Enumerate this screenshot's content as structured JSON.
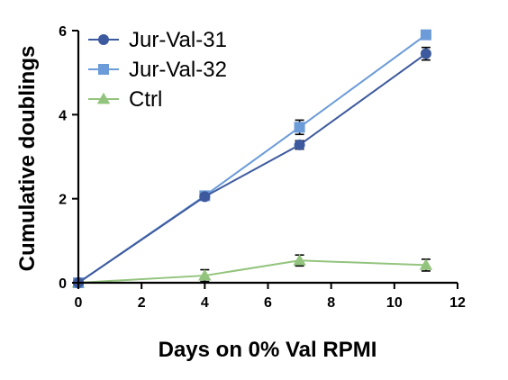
{
  "chart_data": {
    "type": "line",
    "xlabel": "Days on 0% Val RPMI",
    "ylabel": "Cumulative doublings",
    "xlim": [
      0,
      12
    ],
    "ylim": [
      0,
      6
    ],
    "xticks": [
      0,
      2,
      4,
      6,
      8,
      10,
      12
    ],
    "yticks": [
      0,
      2,
      4,
      6
    ],
    "grid": false,
    "legend_position": "top-left",
    "series": [
      {
        "name": "Jur-Val-31",
        "marker": "circle",
        "color": "#3e5a9e",
        "x": [
          0,
          4,
          7,
          11
        ],
        "y": [
          0,
          2.05,
          3.28,
          5.45
        ],
        "err": [
          0,
          0.06,
          0.1,
          0.15
        ]
      },
      {
        "name": "Jur-Val-32",
        "marker": "square",
        "color": "#6b9bd8",
        "x": [
          0,
          4,
          7,
          11
        ],
        "y": [
          0,
          2.07,
          3.7,
          5.9
        ],
        "err": [
          0,
          0.05,
          0.17,
          0.05
        ]
      },
      {
        "name": "Ctrl",
        "marker": "triangle",
        "color": "#93c47d",
        "x": [
          0,
          4,
          7,
          11
        ],
        "y": [
          0,
          0.17,
          0.53,
          0.42
        ],
        "err": [
          0,
          0.14,
          0.13,
          0.14
        ]
      }
    ]
  }
}
